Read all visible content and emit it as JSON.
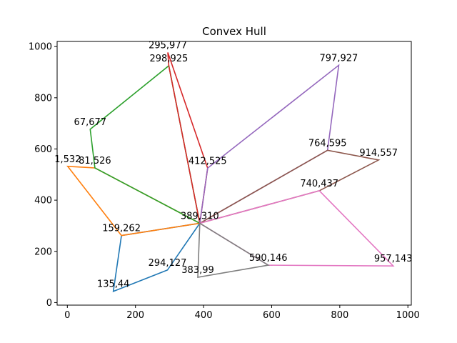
{
  "chart_data": {
    "type": "line",
    "title": "Convex Hull",
    "xlabel": "",
    "ylabel": "",
    "xlim": [
      -30,
      1010
    ],
    "ylim": [
      -10,
      1020
    ],
    "x_ticks": [
      0,
      200,
      400,
      600,
      800,
      1000
    ],
    "y_ticks": [
      0,
      200,
      400,
      600,
      800,
      1000
    ],
    "grid": false,
    "series": [
      {
        "color": "#1f77b4",
        "points": [
          [
            389,
            310
          ],
          [
            294,
            127
          ],
          [
            135,
            44
          ],
          [
            159,
            262
          ],
          [
            389,
            310
          ]
        ]
      },
      {
        "color": "#ff7f0e",
        "points": [
          [
            389,
            310
          ],
          [
            159,
            262
          ],
          [
            1,
            532
          ],
          [
            81,
            526
          ],
          [
            389,
            310
          ]
        ]
      },
      {
        "color": "#2ca02c",
        "points": [
          [
            389,
            310
          ],
          [
            81,
            526
          ],
          [
            67,
            677
          ],
          [
            298,
            925
          ],
          [
            389,
            310
          ]
        ]
      },
      {
        "color": "#d62728",
        "points": [
          [
            389,
            310
          ],
          [
            298,
            925
          ],
          [
            295,
            977
          ],
          [
            412,
            525
          ],
          [
            389,
            310
          ]
        ]
      },
      {
        "color": "#9467bd",
        "points": [
          [
            389,
            310
          ],
          [
            412,
            525
          ],
          [
            797,
            927
          ],
          [
            764,
            595
          ],
          [
            389,
            310
          ]
        ]
      },
      {
        "color": "#8c564b",
        "points": [
          [
            389,
            310
          ],
          [
            764,
            595
          ],
          [
            914,
            557
          ],
          [
            740,
            437
          ],
          [
            389,
            310
          ]
        ]
      },
      {
        "color": "#e377c2",
        "points": [
          [
            389,
            310
          ],
          [
            740,
            437
          ],
          [
            957,
            143
          ],
          [
            590,
            146
          ],
          [
            389,
            310
          ]
        ]
      },
      {
        "color": "#7f7f7f",
        "points": [
          [
            389,
            310
          ],
          [
            590,
            146
          ],
          [
            383,
            99
          ],
          [
            389,
            310
          ]
        ]
      }
    ],
    "annotations": [
      {
        "text": "295,977",
        "x": 295,
        "y": 977
      },
      {
        "text": "298,925",
        "x": 298,
        "y": 925
      },
      {
        "text": "797,927",
        "x": 797,
        "y": 927
      },
      {
        "text": "67,677",
        "x": 67,
        "y": 677
      },
      {
        "text": "764,595",
        "x": 764,
        "y": 595
      },
      {
        "text": "914,557",
        "x": 914,
        "y": 557
      },
      {
        "text": "1,532",
        "x": 1,
        "y": 532
      },
      {
        "text": "81,526",
        "x": 81,
        "y": 526
      },
      {
        "text": "412,525",
        "x": 412,
        "y": 525
      },
      {
        "text": "740,437",
        "x": 740,
        "y": 437
      },
      {
        "text": "389,310",
        "x": 389,
        "y": 310
      },
      {
        "text": "159,262",
        "x": 159,
        "y": 262
      },
      {
        "text": "590,146",
        "x": 590,
        "y": 146
      },
      {
        "text": "957,143",
        "x": 957,
        "y": 143
      },
      {
        "text": "294,127",
        "x": 294,
        "y": 127
      },
      {
        "text": "383,99",
        "x": 383,
        "y": 99
      },
      {
        "text": "135,44",
        "x": 135,
        "y": 44
      }
    ]
  }
}
